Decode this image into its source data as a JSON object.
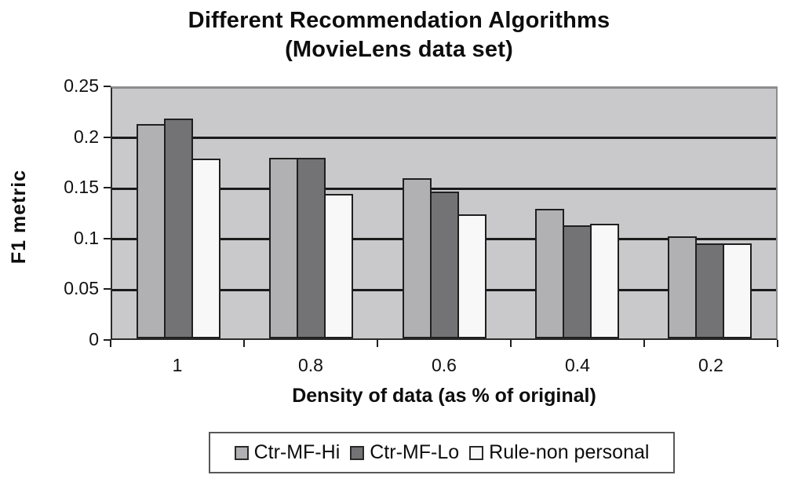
{
  "chart_data": {
    "type": "bar",
    "title": "Different Recommendation Algorithms",
    "subtitle": "(MovieLens data set)",
    "xlabel": "Density of data (as % of original)",
    "ylabel": "F1 metric",
    "categories": [
      "1",
      "0.8",
      "0.6",
      "0.4",
      "0.2"
    ],
    "series": [
      {
        "name": "Ctr-MF-Hi",
        "color": "#b1b1b3",
        "values": [
          0.215,
          0.181,
          0.16,
          0.13,
          0.102
        ]
      },
      {
        "name": "Ctr-MF-Lo",
        "color": "#737376",
        "values": [
          0.22,
          0.181,
          0.147,
          0.113,
          0.095
        ]
      },
      {
        "name": "Rule-non personal",
        "color": "#f8f8f8",
        "values": [
          0.18,
          0.145,
          0.124,
          0.115,
          0.095
        ]
      }
    ],
    "ylim": [
      0,
      0.25
    ],
    "yticks": [
      0,
      0.05,
      0.1,
      0.15,
      0.2,
      0.25
    ],
    "ytick_labels": [
      "0",
      "0.05",
      "0.1",
      "0.15",
      "0.2",
      "0.25"
    ],
    "grid": true,
    "legend_position": "bottom",
    "colors": {
      "plot_background": "#c9c9cb",
      "gridline": "#1a1a1a",
      "bar_border": "#1f1f1f",
      "text": "#0d0d0d"
    }
  }
}
